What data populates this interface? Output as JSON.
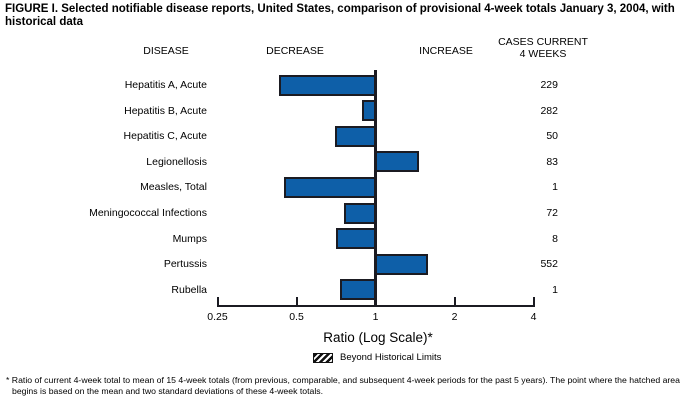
{
  "title": "FIGURE I. Selected notifiable disease reports, United States, comparison of provisional 4-week totals January 3, 2004, with historical data",
  "headers": {
    "disease": "DISEASE",
    "decrease": "DECREASE",
    "increase": "INCREASE",
    "cases_line1": "CASES CURRENT",
    "cases_line2": "4 WEEKS"
  },
  "chart_data": {
    "type": "bar",
    "orientation": "horizontal",
    "scale": "log2",
    "baseline": 1,
    "axis": {
      "label": "Ratio (Log Scale)*",
      "ticks": [
        0.25,
        0.5,
        1,
        2,
        4
      ],
      "tick_labels": [
        "0.25",
        "0.5",
        "1",
        "2",
        "4"
      ],
      "range": [
        0.25,
        4
      ]
    },
    "rows": [
      {
        "disease": "Hepatitis A, Acute",
        "ratio": 0.43,
        "cases": "229"
      },
      {
        "disease": "Hepatitis B, Acute",
        "ratio": 0.89,
        "cases": "282"
      },
      {
        "disease": "Hepatitis C, Acute",
        "ratio": 0.7,
        "cases": "50"
      },
      {
        "disease": "Legionellosis",
        "ratio": 1.47,
        "cases": "83"
      },
      {
        "disease": "Measles, Total",
        "ratio": 0.45,
        "cases": "1"
      },
      {
        "disease": "Meningococcal Infections",
        "ratio": 0.76,
        "cases": "72"
      },
      {
        "disease": "Mumps",
        "ratio": 0.71,
        "cases": "8"
      },
      {
        "disease": "Pertussis",
        "ratio": 1.58,
        "cases": "552"
      },
      {
        "disease": "Rubella",
        "ratio": 0.73,
        "cases": "1"
      }
    ],
    "colors": {
      "bar_fill": "#0e5fa8",
      "bar_border": "#1b1b22",
      "axis": "#1b1b22"
    }
  },
  "legend": {
    "label": "Beyond Historical Limits"
  },
  "footnote": "* Ratio of current 4-week total to mean of 15 4-week totals (from previous, comparable, and subsequent 4-week periods for the past 5 years). The point where the hatched area begins is based on the mean and two standard deviations of these 4-week totals."
}
